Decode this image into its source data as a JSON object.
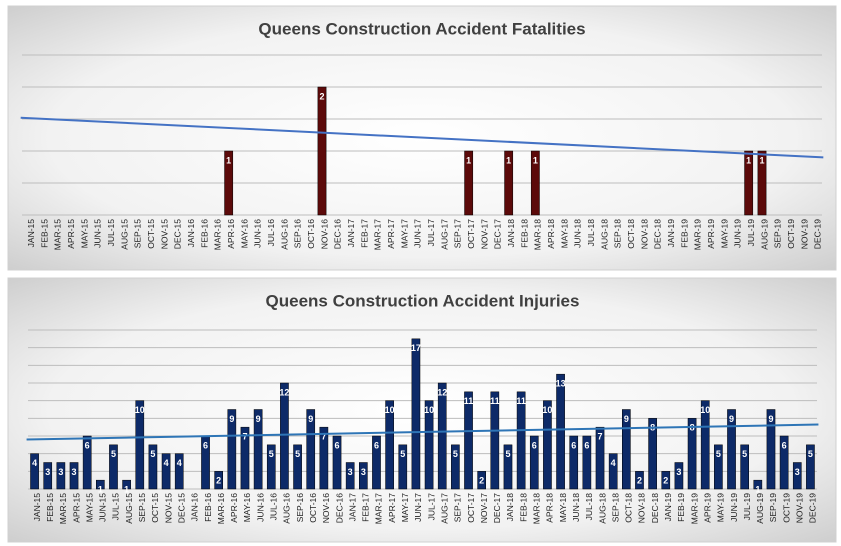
{
  "chart_data": [
    {
      "type": "bar",
      "title": "Queens Construction Accident Fatalities",
      "categories": [
        "JAN-15",
        "FEB-15",
        "MAR-15",
        "APR-15",
        "MAY-15",
        "JUN-15",
        "JUL-15",
        "AUG-15",
        "SEP-15",
        "OCT-15",
        "NOV-15",
        "DEC-15",
        "JAN-16",
        "FEB-16",
        "MAR-16",
        "APR-16",
        "MAY-16",
        "JUN-16",
        "JUL-16",
        "AUG-16",
        "SEP-16",
        "OCT-16",
        "NOV-16",
        "DEC-16",
        "JAN-17",
        "FEB-17",
        "MAR-17",
        "APR-17",
        "MAY-17",
        "JUN-17",
        "JUL-17",
        "AUG-17",
        "SEP-17",
        "OCT-17",
        "NOV-17",
        "DEC-17",
        "JAN-18",
        "FEB-18",
        "MAR-18",
        "APR-18",
        "MAY-18",
        "JUN-18",
        "JUL-18",
        "AUG-18",
        "SEP-18",
        "OCT-18",
        "NOV-18",
        "DEC-18",
        "JAN-19",
        "FEB-19",
        "MAR-19",
        "APR-19",
        "MAY-19",
        "JUN-19",
        "JUL-19",
        "AUG-19",
        "SEP-19",
        "OCT-19",
        "NOV-19",
        "DEC-19"
      ],
      "values": [
        0,
        0,
        0,
        0,
        0,
        0,
        0,
        0,
        0,
        0,
        0,
        0,
        0,
        0,
        0,
        1,
        0,
        0,
        0,
        0,
        0,
        0,
        2,
        0,
        0,
        0,
        0,
        0,
        0,
        0,
        0,
        0,
        0,
        1,
        0,
        0,
        1,
        0,
        1,
        0,
        0,
        0,
        0,
        0,
        0,
        0,
        0,
        0,
        0,
        0,
        0,
        0,
        0,
        0,
        1,
        1,
        0,
        0,
        0,
        0
      ],
      "color": "#5c0a0a",
      "ylim": [
        0,
        2.5
      ],
      "yticks": [
        0,
        0.5,
        1,
        1.5,
        2,
        2.5
      ],
      "grid": true,
      "ytick_labels": false,
      "trendline": {
        "color": "#4472c4",
        "start": 1.52,
        "end": 0.9
      }
    },
    {
      "type": "bar",
      "title": "Queens Construction Accident Injuries",
      "categories": [
        "JAN-15",
        "FEB-15",
        "MAR-15",
        "APR-15",
        "MAY-15",
        "JUN-15",
        "JUL-15",
        "AUG-15",
        "SEP-15",
        "OCT-15",
        "NOV-15",
        "DEC-15",
        "JAN-16",
        "FEB-16",
        "MAR-16",
        "APR-16",
        "MAY-16",
        "JUN-16",
        "JUL-16",
        "AUG-16",
        "SEP-16",
        "OCT-16",
        "NOV-16",
        "DEC-16",
        "JAN-17",
        "FEB-17",
        "MAR-17",
        "APR-17",
        "MAY-17",
        "JUN-17",
        "JUL-17",
        "AUG-17",
        "SEP-17",
        "OCT-17",
        "NOV-17",
        "DEC-17",
        "JAN-18",
        "FEB-18",
        "MAR-18",
        "APR-18",
        "MAY-18",
        "JUN-18",
        "JUL-18",
        "AUG-18",
        "SEP-18",
        "OCT-18",
        "NOV-18",
        "DEC-18",
        "JAN-19",
        "FEB-19",
        "MAR-19",
        "APR-19",
        "MAY-19",
        "JUN-19",
        "JUL-19",
        "AUG-19",
        "SEP-19",
        "OCT-19",
        "NOV-19",
        "DEC-19"
      ],
      "values": [
        4,
        3,
        3,
        3,
        6,
        1,
        5,
        1,
        10,
        5,
        4,
        4,
        0,
        6,
        2,
        9,
        7,
        9,
        5,
        12,
        5,
        9,
        7,
        6,
        3,
        3,
        6,
        10,
        5,
        17,
        10,
        12,
        5,
        11,
        2,
        11,
        5,
        11,
        6,
        10,
        13,
        6,
        6,
        7,
        4,
        9,
        2,
        8,
        2,
        3,
        8,
        10,
        5,
        9,
        5,
        1,
        9,
        6,
        3,
        5
      ],
      "color": "#0d2a68",
      "ylim": [
        0,
        18
      ],
      "yticks": [
        0,
        2,
        4,
        6,
        8,
        10,
        12,
        14,
        16,
        18
      ],
      "grid": true,
      "ytick_labels": false,
      "trendline": {
        "color": "#2e75b6",
        "start": 5.6,
        "end": 7.3
      }
    }
  ]
}
